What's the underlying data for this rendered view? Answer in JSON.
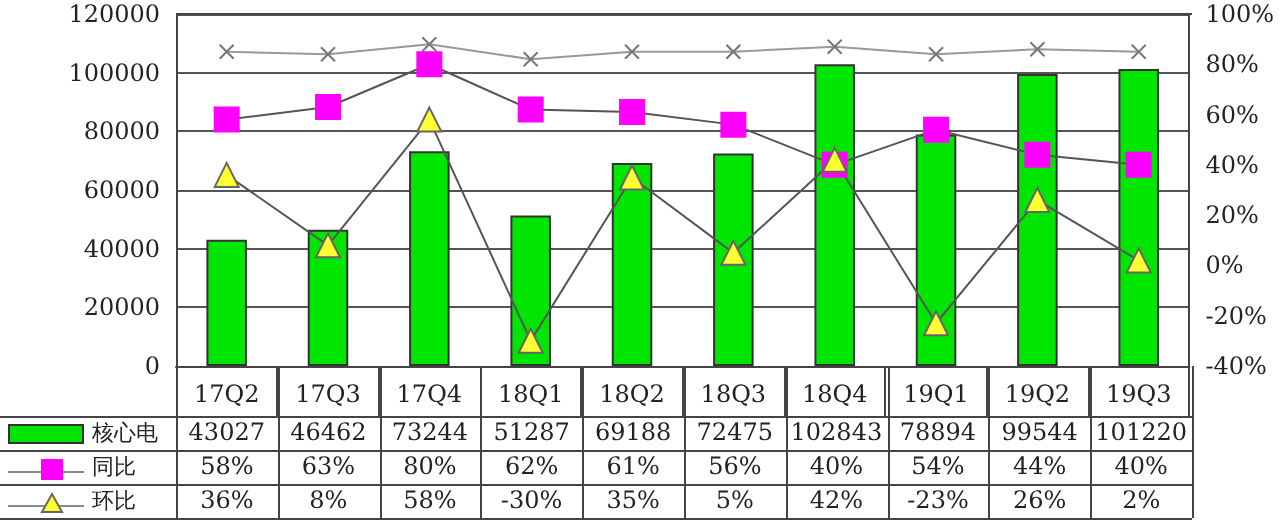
{
  "chart_data": {
    "type": "bar",
    "categories": [
      "17Q2",
      "17Q3",
      "17Q4",
      "18Q1",
      "18Q2",
      "18Q3",
      "18Q4",
      "19Q1",
      "19Q2",
      "19Q3"
    ],
    "series": [
      {
        "name": "核心电",
        "color": "#00e600",
        "values": [
          43027,
          46462,
          73244,
          51287,
          69188,
          72475,
          102843,
          78894,
          99544,
          101220
        ],
        "value_labels": [
          "43027",
          "46462",
          "73244",
          "51287",
          "69188",
          "72475",
          "102843",
          "78894",
          "99544",
          "101220"
        ]
      },
      {
        "name": "同比",
        "type": "line",
        "axis": "y2",
        "color": "#ff00ff",
        "marker": "square",
        "values": [
          58,
          63,
          80,
          62,
          61,
          56,
          40,
          54,
          44,
          40
        ],
        "value_labels": [
          "58%",
          "63%",
          "80%",
          "62%",
          "61%",
          "56%",
          "40%",
          "54%",
          "44%",
          "40%"
        ]
      },
      {
        "name": "环比",
        "type": "line",
        "axis": "y2",
        "color": "#ffff33",
        "marker": "triangle",
        "values": [
          36,
          8,
          58,
          -30,
          35,
          5,
          42,
          -23,
          26,
          2
        ],
        "value_labels": [
          "36%",
          "8%",
          "58%",
          "-30%",
          "35%",
          "5%",
          "42%",
          "-23%",
          "26%",
          "2%"
        ]
      },
      {
        "type": "line",
        "axis": "y2",
        "color": "#999999",
        "marker": "cross",
        "values": [
          85,
          84,
          88,
          82,
          85,
          85,
          87,
          84,
          86,
          85
        ]
      }
    ],
    "ylim": [
      0,
      120000
    ],
    "yticks": [
      0,
      20000,
      40000,
      60000,
      80000,
      100000,
      120000
    ],
    "y2lim": [
      -40,
      100
    ],
    "y2ticks": [
      {
        "value": -40,
        "label": "-40%"
      },
      {
        "value": -20,
        "label": "-20%"
      },
      {
        "value": 0,
        "label": "0%"
      },
      {
        "value": 20,
        "label": "20%"
      },
      {
        "value": 40,
        "label": "40%"
      },
      {
        "value": 60,
        "label": "60%"
      },
      {
        "value": 80,
        "label": "80%"
      },
      {
        "value": 100,
        "label": "100%"
      }
    ],
    "grid": "y",
    "legend": "bottom left"
  }
}
